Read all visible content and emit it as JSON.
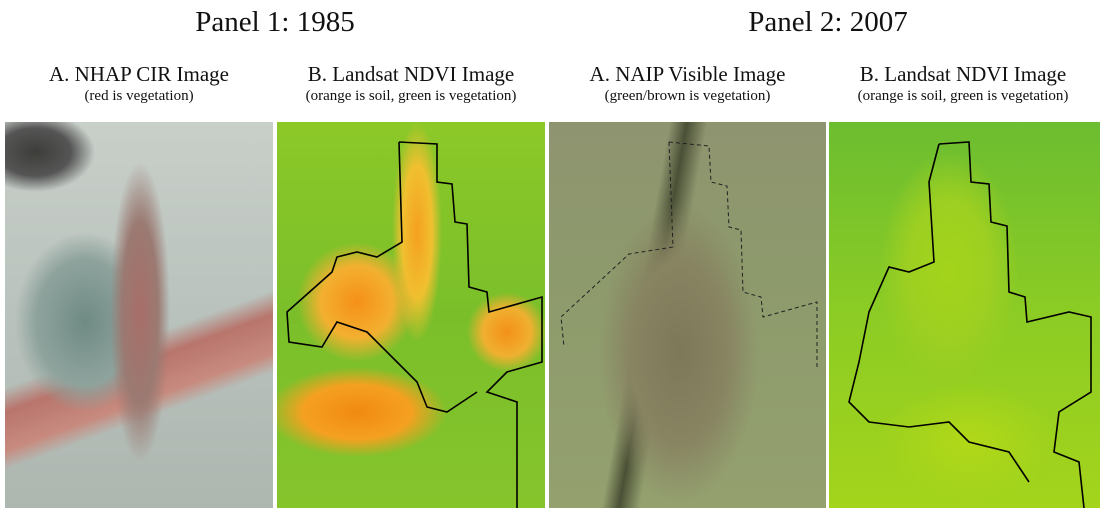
{
  "panels": [
    {
      "title": "Panel 1: 1985",
      "images": [
        {
          "heading": "A. NHAP CIR Image",
          "caption": "(red is vegetation)"
        },
        {
          "heading": "B. Landsat NDVI Image",
          "caption": "(orange is soil, green is vegetation)"
        }
      ]
    },
    {
      "title": "Panel 2: 2007",
      "images": [
        {
          "heading": "A. NAIP Visible Image",
          "caption": "(green/brown is vegetation)"
        },
        {
          "heading": "B. Landsat NDVI Image",
          "caption": "(orange is soil, green is vegetation)"
        }
      ]
    }
  ],
  "colors": {
    "soil": "#f39018",
    "vegetation": "#7abf2a",
    "boundary": "#000000"
  }
}
